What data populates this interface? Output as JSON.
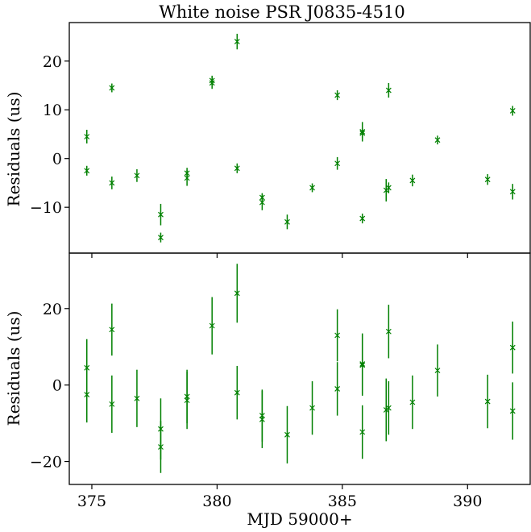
{
  "chart_data": [
    {
      "type": "scatter",
      "title": "White noise PSR J0835-4510",
      "xlabel": "",
      "ylabel": "Residuals (us)",
      "xlim": [
        374.1,
        392.5
      ],
      "ylim": [
        -19.4,
        27.9
      ],
      "xticks": [
        375,
        380,
        385,
        390
      ],
      "yticks": [
        -10,
        0,
        10,
        20
      ],
      "ytick_labels": [
        "−10",
        "0",
        "10",
        "20"
      ],
      "grid": false,
      "color": "#008000",
      "marker": "x",
      "points": [
        {
          "x": 374.8,
          "y": 4.5,
          "err": 1.4
        },
        {
          "x": 374.8,
          "y": -2.5,
          "err": 1.0
        },
        {
          "x": 375.8,
          "y": 14.5,
          "err": 0.9
        },
        {
          "x": 375.8,
          "y": -5.0,
          "err": 1.3
        },
        {
          "x": 376.8,
          "y": -3.5,
          "err": 1.3
        },
        {
          "x": 377.75,
          "y": -11.5,
          "err": 2.2
        },
        {
          "x": 377.75,
          "y": -16.2,
          "err": 1.0
        },
        {
          "x": 378.8,
          "y": -3.0,
          "err": 1.1
        },
        {
          "x": 378.8,
          "y": -4.0,
          "err": 1.6
        },
        {
          "x": 379.8,
          "y": 15.5,
          "err": 1.2
        },
        {
          "x": 379.8,
          "y": 16.0,
          "err": 1.0
        },
        {
          "x": 380.8,
          "y": 24.0,
          "err": 1.6
        },
        {
          "x": 380.8,
          "y": -2.0,
          "err": 1.0
        },
        {
          "x": 381.8,
          "y": -8.0,
          "err": 0.9
        },
        {
          "x": 381.8,
          "y": -9.0,
          "err": 1.6
        },
        {
          "x": 382.8,
          "y": -13.0,
          "err": 1.5
        },
        {
          "x": 383.8,
          "y": -6.0,
          "err": 0.9
        },
        {
          "x": 384.8,
          "y": 13.0,
          "err": 1.0
        },
        {
          "x": 384.8,
          "y": -1.0,
          "err": 1.3
        },
        {
          "x": 385.8,
          "y": 5.5,
          "err": 2.0
        },
        {
          "x": 385.8,
          "y": 5.2,
          "err": 1.0
        },
        {
          "x": 385.8,
          "y": -12.3,
          "err": 1.0
        },
        {
          "x": 386.75,
          "y": -6.5,
          "err": 2.3
        },
        {
          "x": 386.85,
          "y": -6.0,
          "err": 1.1
        },
        {
          "x": 386.85,
          "y": 14.0,
          "err": 1.5
        },
        {
          "x": 387.8,
          "y": -4.5,
          "err": 1.2
        },
        {
          "x": 388.8,
          "y": 3.8,
          "err": 0.9
        },
        {
          "x": 390.8,
          "y": -4.3,
          "err": 1.1
        },
        {
          "x": 391.8,
          "y": 9.8,
          "err": 1.0
        },
        {
          "x": 391.8,
          "y": -6.8,
          "err": 1.6
        }
      ]
    },
    {
      "type": "scatter",
      "title": "",
      "xlabel": "MJD 59000+",
      "ylabel": "Residuals (us)",
      "xlim": [
        374.1,
        392.5
      ],
      "ylim": [
        -26.0,
        34.5
      ],
      "xticks": [
        375,
        380,
        385,
        390
      ],
      "xtick_labels": [
        "375",
        "380",
        "385",
        "390"
      ],
      "yticks": [
        -20,
        0,
        20
      ],
      "ytick_labels": [
        "−20",
        "0",
        "20"
      ],
      "grid": false,
      "color": "#008000",
      "marker": "x",
      "points": [
        {
          "x": 374.8,
          "y": 4.5,
          "err": 7.5
        },
        {
          "x": 374.8,
          "y": -2.5,
          "err": 7.3
        },
        {
          "x": 375.8,
          "y": 14.5,
          "err": 6.8
        },
        {
          "x": 375.8,
          "y": -5.0,
          "err": 7.5
        },
        {
          "x": 376.8,
          "y": -3.5,
          "err": 7.5
        },
        {
          "x": 377.75,
          "y": -11.5,
          "err": 8.0
        },
        {
          "x": 377.75,
          "y": -16.2,
          "err": 6.8
        },
        {
          "x": 378.8,
          "y": -3.0,
          "err": 7.0
        },
        {
          "x": 378.8,
          "y": -4.0,
          "err": 7.5
        },
        {
          "x": 379.8,
          "y": 15.5,
          "err": 7.5
        },
        {
          "x": 380.8,
          "y": 24.0,
          "err": 7.7
        },
        {
          "x": 380.8,
          "y": -2.0,
          "err": 7.0
        },
        {
          "x": 381.8,
          "y": -8.0,
          "err": 6.8
        },
        {
          "x": 381.8,
          "y": -9.0,
          "err": 7.5
        },
        {
          "x": 382.8,
          "y": -13.0,
          "err": 7.5
        },
        {
          "x": 383.8,
          "y": -6.0,
          "err": 7.0
        },
        {
          "x": 384.8,
          "y": 13.0,
          "err": 6.8
        },
        {
          "x": 384.8,
          "y": -1.0,
          "err": 7.0
        },
        {
          "x": 385.8,
          "y": 5.5,
          "err": 8.0
        },
        {
          "x": 385.8,
          "y": 5.2,
          "err": 8.0
        },
        {
          "x": 385.8,
          "y": -12.3,
          "err": 7.0
        },
        {
          "x": 386.75,
          "y": -6.5,
          "err": 8.2
        },
        {
          "x": 386.85,
          "y": -6.0,
          "err": 7.0
        },
        {
          "x": 386.85,
          "y": 14.0,
          "err": 7.0
        },
        {
          "x": 387.8,
          "y": -4.5,
          "err": 7.0
        },
        {
          "x": 388.8,
          "y": 3.8,
          "err": 6.8
        },
        {
          "x": 390.8,
          "y": -4.3,
          "err": 7.0
        },
        {
          "x": 391.8,
          "y": 9.8,
          "err": 6.8
        },
        {
          "x": 391.8,
          "y": -6.8,
          "err": 7.5
        }
      ]
    }
  ]
}
